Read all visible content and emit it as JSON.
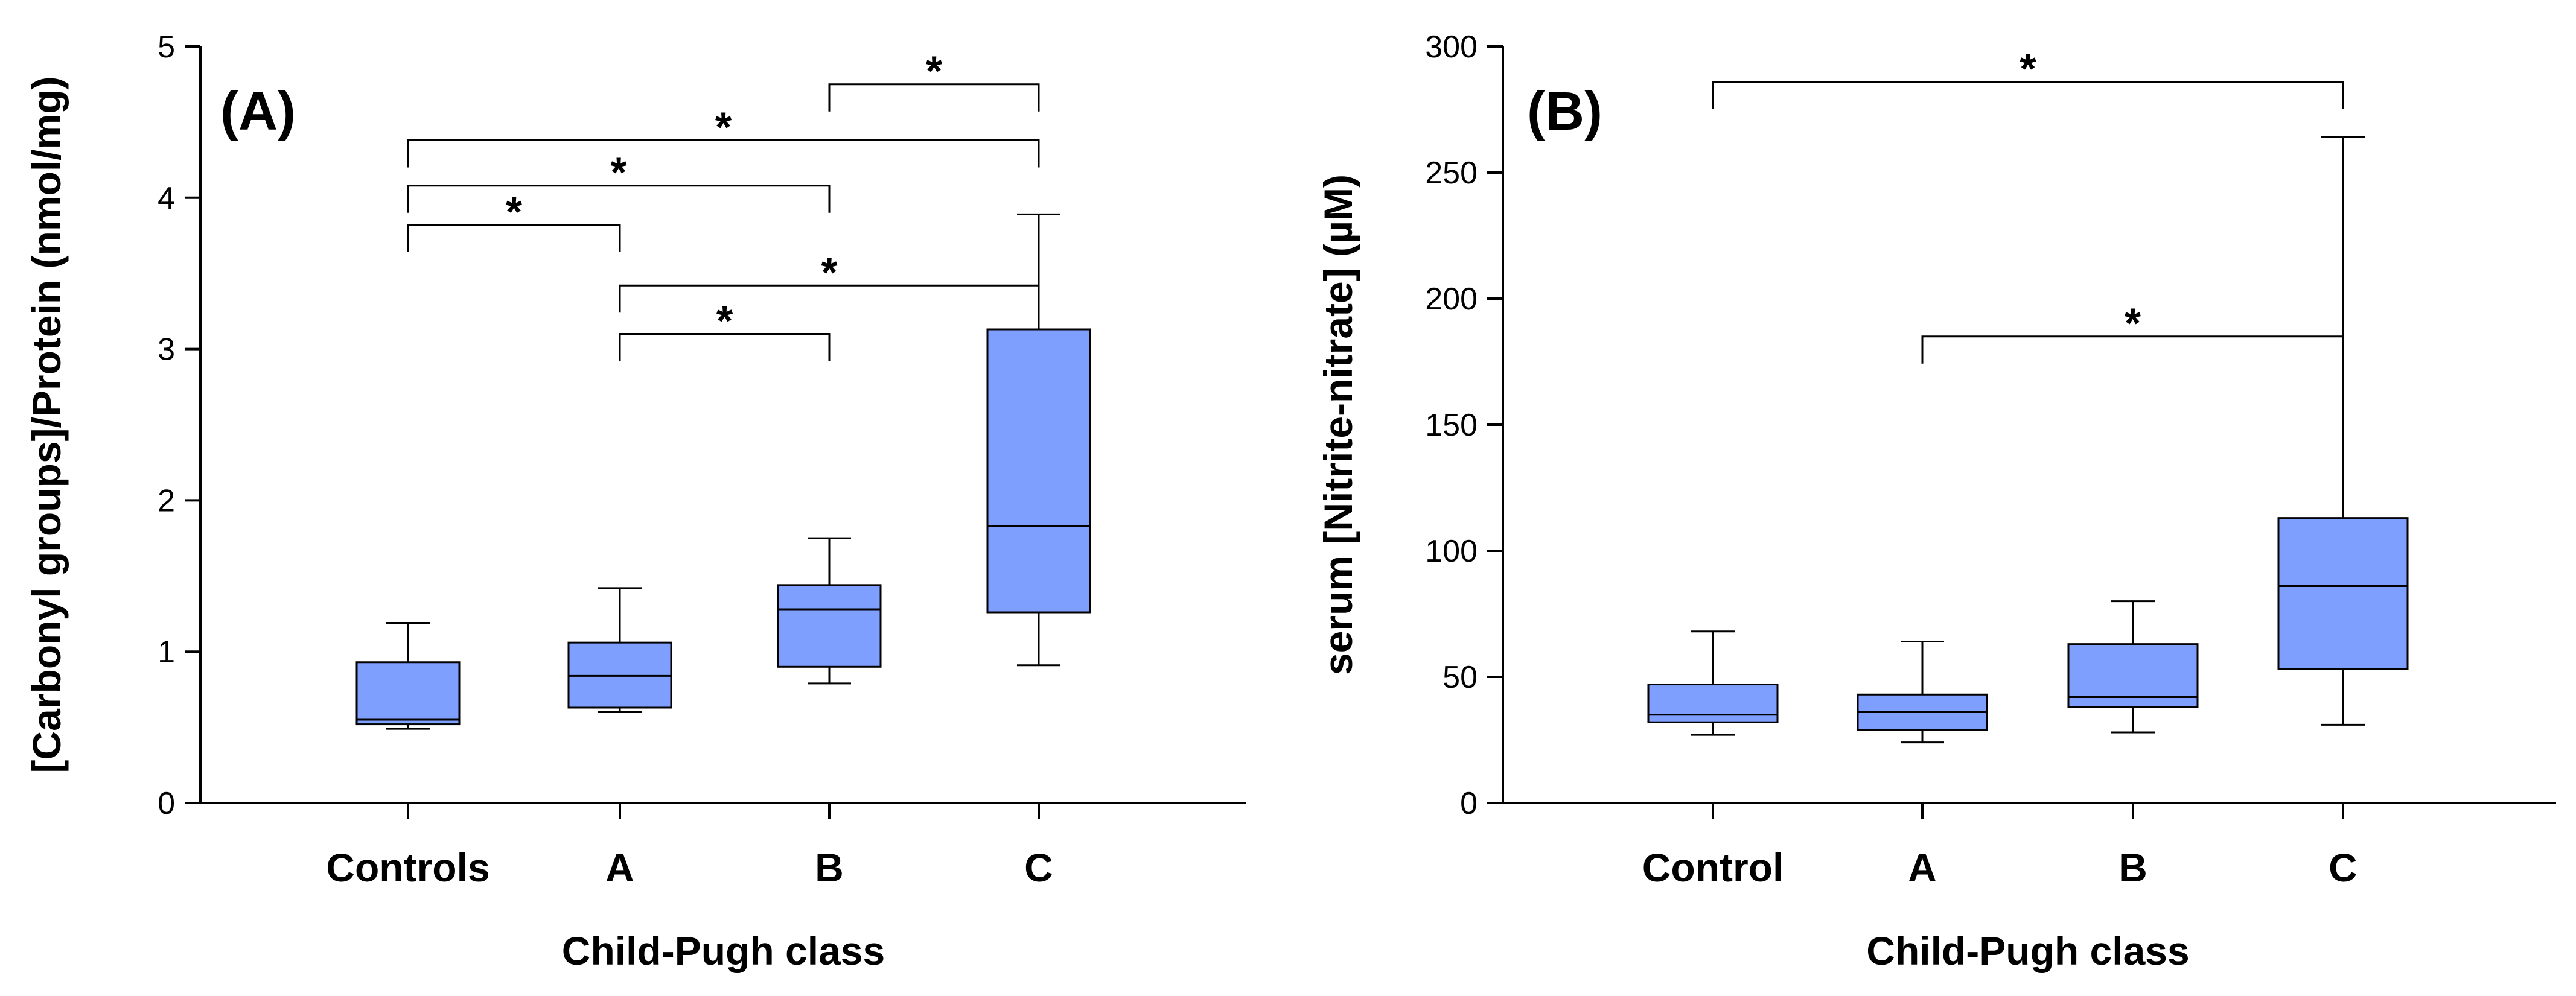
{
  "colors": {
    "box_fill": "#7f9fff",
    "stroke": "#000000",
    "background": "#ffffff"
  },
  "chart_data": [
    {
      "type": "box",
      "panel_label": "(A)",
      "xlabel": "Child-Pugh class",
      "ylabel": "[Carbonyl groups]/Protein (nmol/mg)",
      "ylim": [
        0,
        5
      ],
      "yticks": [
        "0",
        "1",
        "2",
        "3",
        "4",
        "5"
      ],
      "grid": false,
      "categories": [
        "Controls",
        "A",
        "B",
        "C"
      ],
      "boxes": [
        {
          "category": "Controls",
          "whisker_low": 0.49,
          "q1": 0.52,
          "median": 0.55,
          "q3": 0.93,
          "whisker_high": 1.19
        },
        {
          "category": "A",
          "whisker_low": 0.6,
          "q1": 0.63,
          "median": 0.84,
          "q3": 1.06,
          "whisker_high": 1.42
        },
        {
          "category": "B",
          "whisker_low": 0.79,
          "q1": 0.9,
          "median": 1.28,
          "q3": 1.44,
          "whisker_high": 1.75
        },
        {
          "category": "C",
          "whisker_low": 0.91,
          "q1": 1.26,
          "median": 1.83,
          "q3": 3.13,
          "whisker_high": 3.89
        }
      ],
      "significance": [
        {
          "from": "B",
          "to": "C",
          "level": 4.75,
          "label": "*"
        },
        {
          "from": "Controls",
          "to": "C",
          "level": 4.38,
          "label": "*"
        },
        {
          "from": "Controls",
          "to": "B",
          "level": 4.08,
          "label": "*"
        },
        {
          "from": "Controls",
          "to": "A",
          "level": 3.82,
          "label": "*"
        },
        {
          "from": "A",
          "to": "C",
          "level": 3.42,
          "label": "*"
        },
        {
          "from": "A",
          "to": "B",
          "level": 3.1,
          "label": "*"
        }
      ]
    },
    {
      "type": "box",
      "panel_label": "(B)",
      "xlabel": "Child-Pugh class",
      "ylabel": "serum [Nitrite-nitrate] (µM)",
      "ylim": [
        0,
        300
      ],
      "yticks": [
        "0",
        "50",
        "100",
        "150",
        "200",
        "250",
        "300"
      ],
      "grid": false,
      "categories": [
        "Control",
        "A",
        "B",
        "C"
      ],
      "boxes": [
        {
          "category": "Control",
          "whisker_low": 27,
          "q1": 32,
          "median": 35,
          "q3": 47,
          "whisker_high": 68
        },
        {
          "category": "A",
          "whisker_low": 24,
          "q1": 29,
          "median": 36,
          "q3": 43,
          "whisker_high": 64
        },
        {
          "category": "B",
          "whisker_low": 28,
          "q1": 38,
          "median": 42,
          "q3": 63,
          "whisker_high": 80
        },
        {
          "category": "C",
          "whisker_low": 31,
          "q1": 53,
          "median": 86,
          "q3": 113,
          "whisker_high": 264
        }
      ],
      "significance": [
        {
          "from": "Control",
          "to": "C",
          "level": 286,
          "label": "*"
        },
        {
          "from": "A",
          "to": "C",
          "level": 185,
          "label": "*"
        }
      ]
    }
  ]
}
